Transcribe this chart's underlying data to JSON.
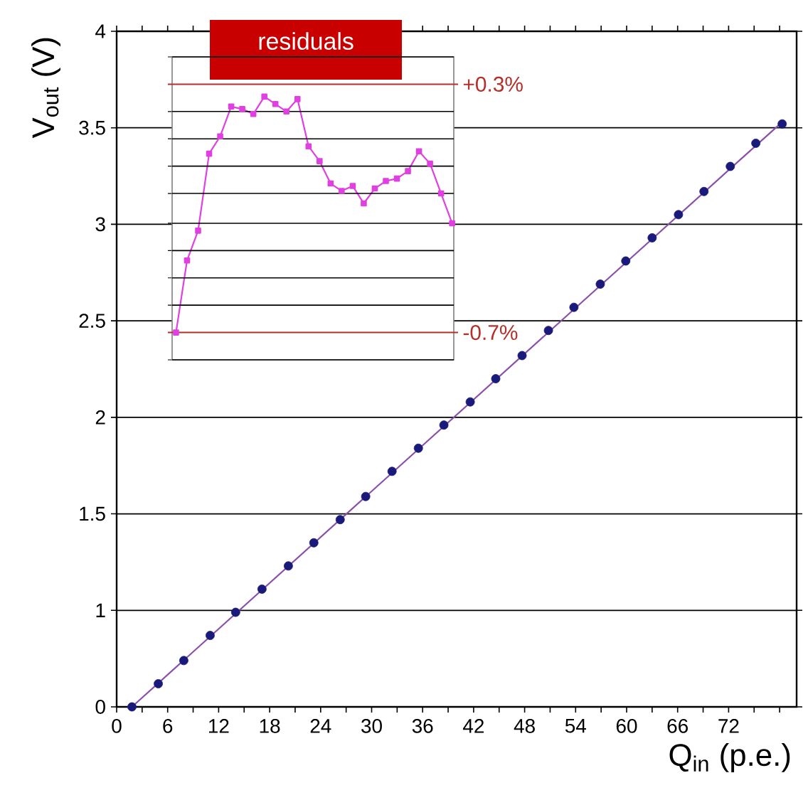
{
  "chart_data": [
    {
      "type": "scatter",
      "xlabel": "Q$_{in}$ (p.e.)",
      "ylabel": "V$_{out}$ (V)",
      "xlim": [
        0,
        80
      ],
      "ylim": [
        0.5,
        4
      ],
      "xticks": [
        0,
        {
          "value": 3,
          "label": null
        },
        6,
        {
          "value": 9,
          "label": null
        },
        12,
        {
          "value": 15,
          "label": null
        },
        18,
        {
          "value": 21,
          "label": null
        },
        24,
        {
          "value": 27,
          "label": null
        },
        30,
        {
          "value": 33,
          "label": null
        },
        36,
        {
          "value": 39,
          "label": null
        },
        42,
        {
          "value": 45,
          "label": null
        },
        48,
        {
          "value": 51,
          "label": null
        },
        54,
        {
          "value": 57,
          "label": null
        },
        60,
        {
          "value": 63,
          "label": null
        },
        66,
        {
          "value": 69,
          "label": null
        },
        72,
        {
          "value": 75,
          "label": null
        },
        {
          "value": 78,
          "label": null
        }
      ],
      "yticks": [
        {
          "value": 0.5,
          "label": "0"
        },
        1,
        1.5,
        2,
        2.5,
        3,
        3.5,
        4
      ],
      "grid": "y",
      "series": [
        {
          "type": "line",
          "x": [
            1.8,
            78.3
          ],
          "values": [
            0.5,
            3.53
          ],
          "color": "#8a4fa8"
        },
        {
          "type": "scatter",
          "marker": "circle",
          "color": "#1a1a7a",
          "x": [
            1.8,
            4.9,
            7.9,
            11.0,
            14.0,
            17.1,
            20.2,
            23.2,
            26.3,
            29.3,
            32.4,
            35.5,
            38.5,
            41.6,
            44.6,
            47.7,
            50.8,
            53.8,
            56.9,
            59.9,
            63.0,
            66.1,
            69.1,
            72.2,
            75.2,
            78.3
          ],
          "values": [
            0.5,
            0.62,
            0.74,
            0.87,
            0.99,
            1.11,
            1.23,
            1.35,
            1.47,
            1.59,
            1.72,
            1.84,
            1.96,
            2.08,
            2.2,
            2.32,
            2.45,
            2.57,
            2.69,
            2.81,
            2.93,
            3.05,
            3.17,
            3.3,
            3.42,
            3.52
          ]
        }
      ]
    },
    {
      "type": "line",
      "title": "residuals",
      "categories": [
        null,
        null,
        null,
        null,
        null,
        null,
        null,
        null,
        null,
        null,
        null,
        null,
        null,
        null,
        null,
        null,
        null,
        null,
        null,
        null,
        null,
        null,
        null,
        null,
        null,
        null
      ],
      "ylim": [
        -0.81,
        0.41
      ],
      "yticks": [
        {
          "value": -0.81,
          "label": null
        },
        {
          "value": -0.59,
          "label": null
        },
        {
          "value": -0.48,
          "label": null
        },
        {
          "value": -0.37,
          "label": null
        },
        {
          "value": -0.26,
          "label": null
        },
        {
          "value": -0.14,
          "label": null
        },
        {
          "value": -0.03,
          "label": null
        },
        {
          "value": 0.08,
          "label": null
        },
        {
          "value": 0.19,
          "label": null
        },
        {
          "value": 0.41,
          "label": null
        }
      ],
      "grid": "y",
      "ref_lines": [
        {
          "axis": "y",
          "value": 0.3,
          "label": "+0.3%",
          "color": "#b5302a"
        },
        {
          "axis": "y",
          "value": -0.7,
          "label": "-0.7%",
          "color": "#b5302a"
        }
      ],
      "series": [
        {
          "color": "#e040e0",
          "marker": "square",
          "values": [
            -0.7,
            -0.41,
            -0.29,
            0.02,
            0.09,
            0.21,
            0.2,
            0.18,
            0.25,
            0.22,
            0.19,
            0.24,
            0.05,
            -0.01,
            -0.1,
            -0.13,
            -0.11,
            -0.18,
            -0.12,
            -0.09,
            -0.08,
            -0.05,
            0.03,
            -0.02,
            -0.14,
            -0.26
          ]
        }
      ]
    }
  ]
}
